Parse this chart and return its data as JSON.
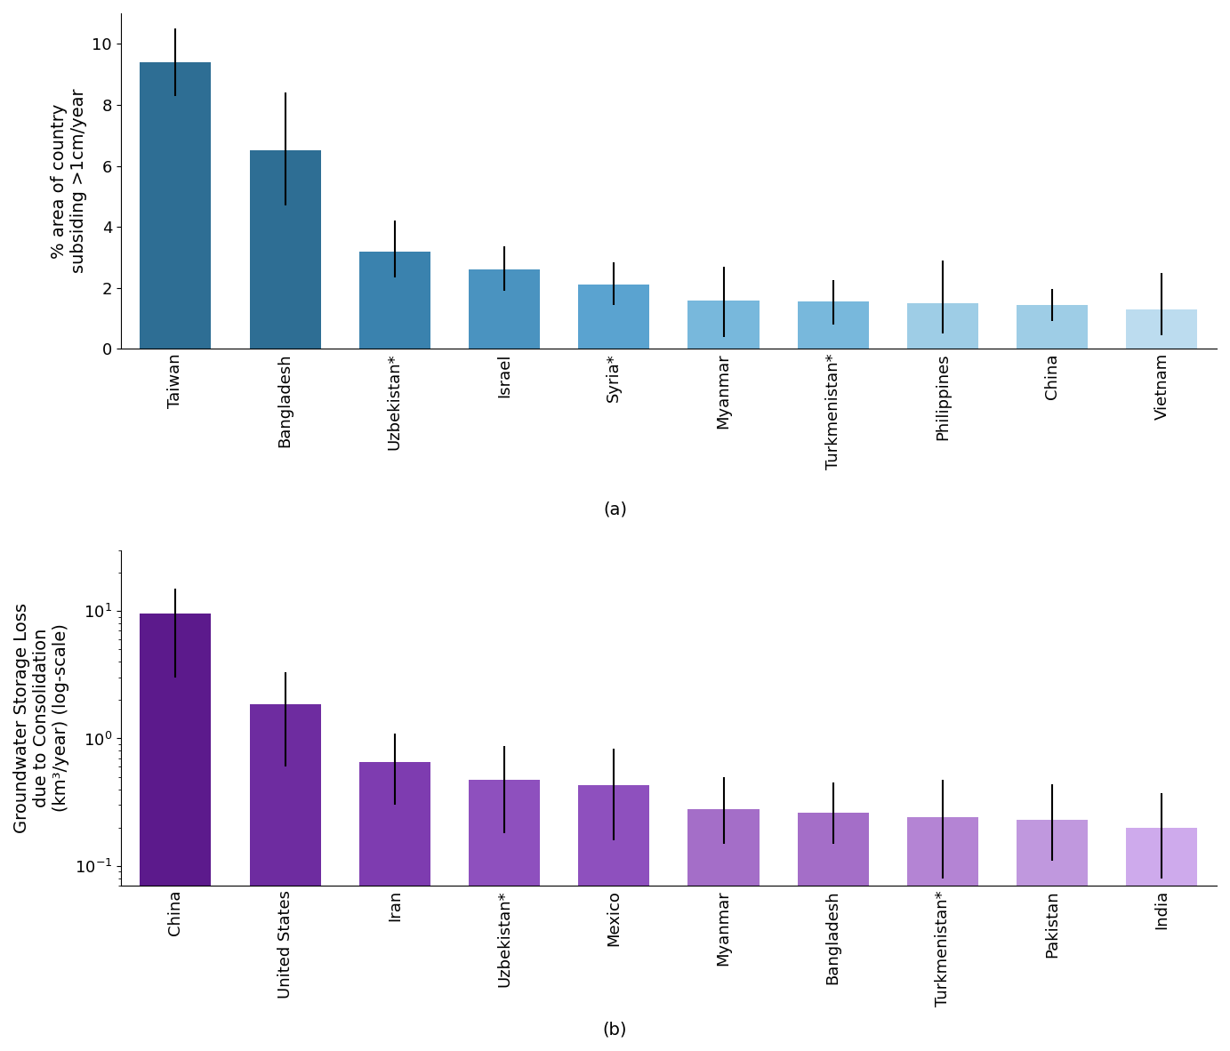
{
  "panel_a": {
    "categories": [
      "Taiwan",
      "Bangladesh",
      "Uzbekistan*",
      "Israel",
      "Syria*",
      "Myanmar",
      "Turkmenistan*",
      "Philippines",
      "China",
      "Vietnam"
    ],
    "values": [
      9.4,
      6.5,
      3.2,
      2.6,
      2.1,
      1.58,
      1.55,
      1.5,
      1.45,
      1.3
    ],
    "err_low": [
      1.1,
      1.8,
      0.85,
      0.7,
      0.65,
      1.2,
      0.75,
      1.0,
      0.55,
      0.85
    ],
    "err_high": [
      1.1,
      1.9,
      1.0,
      0.75,
      0.75,
      1.1,
      0.7,
      1.4,
      0.5,
      1.2
    ],
    "colors": [
      "#2e6e94",
      "#2e6e94",
      "#3a82ae",
      "#4a93c0",
      "#5aa3d0",
      "#78b8dc",
      "#78b8dc",
      "#9ecde6",
      "#9ecde6",
      "#bcdcef"
    ],
    "ylabel": "% area of country\nsubsiding >1cm/year",
    "ylim": [
      0,
      11
    ],
    "yticks": [
      0,
      2,
      4,
      6,
      8,
      10
    ],
    "label": "(a)"
  },
  "panel_b": {
    "categories": [
      "China",
      "United States",
      "Iran",
      "Uzbekistan*",
      "Mexico",
      "Myanmar",
      "Bangladesh",
      "Turkmenistan*",
      "Pakistan",
      "India"
    ],
    "values": [
      9.5,
      1.85,
      0.65,
      0.47,
      0.43,
      0.28,
      0.26,
      0.24,
      0.23,
      0.2
    ],
    "err_low": [
      6.5,
      1.25,
      0.35,
      0.29,
      0.27,
      0.13,
      0.11,
      0.16,
      0.12,
      0.12
    ],
    "err_high": [
      5.5,
      1.45,
      0.45,
      0.4,
      0.4,
      0.22,
      0.19,
      0.23,
      0.21,
      0.17
    ],
    "colors": [
      "#5c1a8c",
      "#6e2ca0",
      "#7e3cb0",
      "#8e50be",
      "#8e50be",
      "#a46ec8",
      "#a46ec8",
      "#b484d4",
      "#c098de",
      "#ceaaec"
    ],
    "ylabel": "Groundwater Storage Loss\ndue to Consolidation\n(km³/year) (log-scale)",
    "ylim_log": [
      0.07,
      30
    ],
    "yticks_log": [
      0.1,
      1.0,
      10.0
    ],
    "label": "(b)"
  },
  "figure_bg": "#ffffff",
  "bar_width": 0.65,
  "fontsize_label": 14,
  "fontsize_tick": 13,
  "fontsize_panel_label": 14
}
